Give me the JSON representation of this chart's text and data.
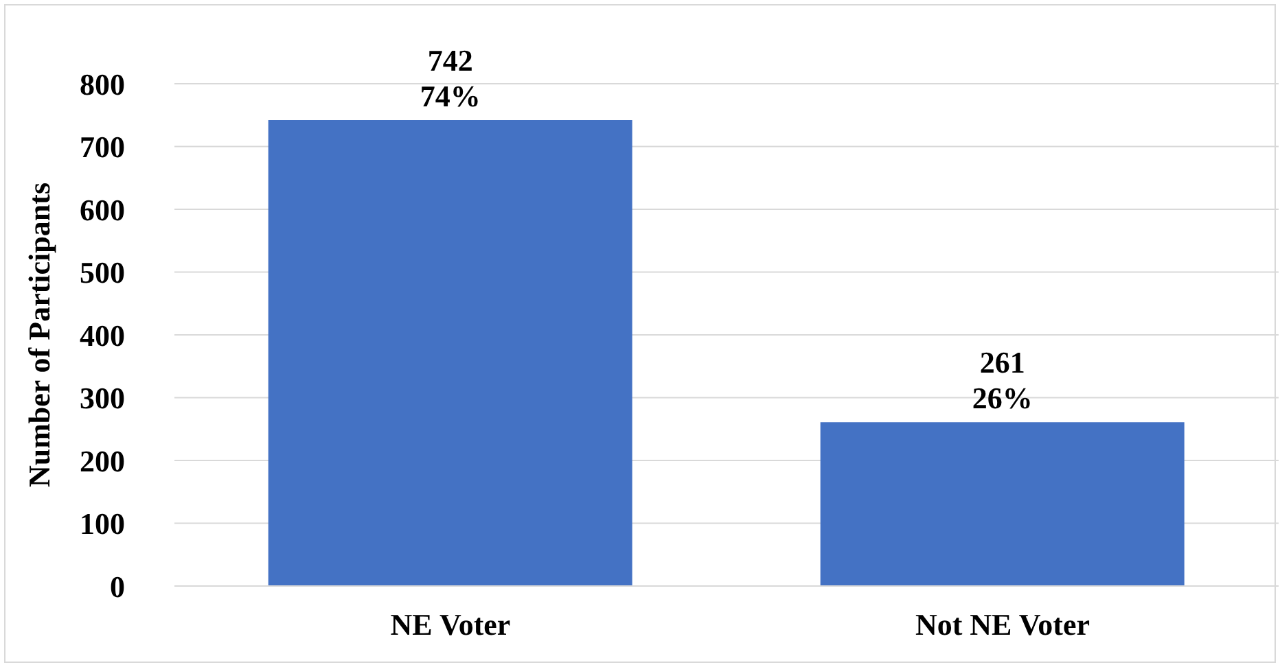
{
  "chart_data": {
    "type": "bar",
    "ylabel": "Number of Participants",
    "categories": [
      "NE Voter",
      "Not NE Voter"
    ],
    "values": [
      742,
      261
    ],
    "color": "#4472c4",
    "value_labels": [
      "742\n74%",
      "261\n26%"
    ],
    "ylim": [
      0,
      800
    ],
    "yticks": [
      0,
      100,
      200,
      300,
      400,
      500,
      600,
      700,
      800
    ],
    "grid": "y"
  }
}
